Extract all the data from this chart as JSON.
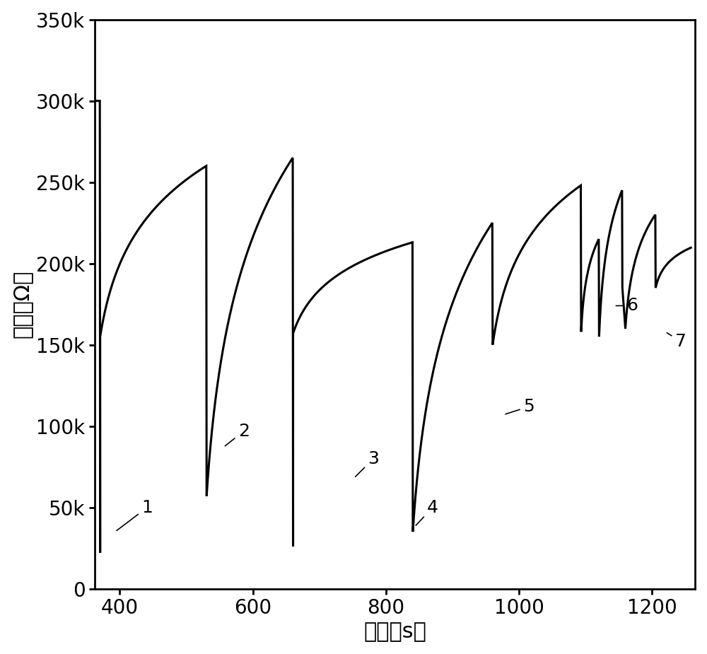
{
  "xlabel": "时间（s）",
  "ylabel": "电阱（Ω）",
  "xlim": [
    362,
    1265
  ],
  "ylim": [
    0,
    350000
  ],
  "xticks": [
    400,
    600,
    800,
    1000,
    1200
  ],
  "yticks": [
    0,
    50000,
    100000,
    150000,
    200000,
    250000,
    300000,
    350000
  ],
  "ytick_labels": [
    "0",
    "50k",
    "100k",
    "150k",
    "200k",
    "250k",
    "300k",
    "350k"
  ],
  "line_color": "#000000",
  "line_width": 2.2,
  "background_color": "#ffffff"
}
